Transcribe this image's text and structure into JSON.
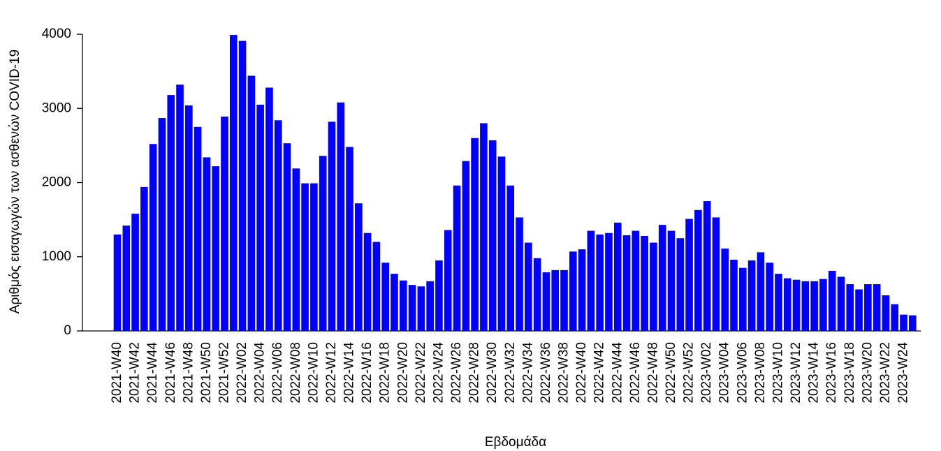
{
  "chart_data": {
    "type": "bar",
    "x_label": "Εβδομάδα",
    "y_label": "Αριθμός εισαγωγών των ασθενών COVID-19",
    "categories": [
      "2021-W40",
      null,
      "2021-W42",
      null,
      "2021-W44",
      null,
      "2021-W46",
      null,
      "2021-W48",
      null,
      "2021-W50",
      null,
      "2021-W52",
      null,
      "2022-W02",
      null,
      "2022-W04",
      null,
      "2022-W06",
      null,
      "2022-W08",
      null,
      "2022-W10",
      null,
      "2022-W12",
      null,
      "2022-W14",
      null,
      "2022-W16",
      null,
      "2022-W18",
      null,
      "2022-W20",
      null,
      "2022-W22",
      null,
      "2022-W24",
      null,
      "2022-W26",
      null,
      "2022-W28",
      null,
      "2022-W30",
      null,
      "2022-W32",
      null,
      "2022-W34",
      null,
      "2022-W36",
      null,
      "2022-W38",
      null,
      "2022-W40",
      null,
      "2022-W42",
      null,
      "2022-W44",
      null,
      "2022-W46",
      null,
      "2022-W48",
      null,
      "2022-W50",
      null,
      "2022-W52",
      null,
      "2023-W02",
      null,
      "2023-W04",
      null,
      "2023-W06",
      null,
      "2023-W08",
      null,
      "2023-W10",
      null,
      "2023-W12",
      null,
      "2023-W14",
      null,
      "2023-W16",
      null,
      "2023-W18",
      null,
      "2023-W20",
      null,
      "2023-W22",
      null,
      "2023-W24",
      null
    ],
    "values": [
      1300,
      1420,
      1580,
      1940,
      2520,
      2870,
      3180,
      3320,
      3040,
      2750,
      2340,
      2220,
      2890,
      3990,
      3910,
      3440,
      3050,
      3280,
      2840,
      2530,
      2190,
      1990,
      1990,
      2360,
      2820,
      3080,
      2480,
      1720,
      1320,
      1200,
      920,
      770,
      680,
      620,
      600,
      670,
      950,
      1360,
      1960,
      2290,
      2600,
      2800,
      2570,
      2350,
      1960,
      1530,
      1190,
      980,
      790,
      820,
      820,
      1070,
      1100,
      1350,
      1300,
      1320,
      1460,
      1290,
      1350,
      1280,
      1190,
      1430,
      1350,
      1250,
      1510,
      1630,
      1750,
      1530,
      1110,
      960,
      850,
      950,
      1060,
      920,
      770,
      710,
      690,
      670,
      670,
      700,
      810,
      730,
      630,
      560,
      630,
      630,
      480,
      360,
      220,
      210
    ],
    "color": "#0000ff",
    "ylim": [
      0,
      4000
    ],
    "yticks": [
      0,
      1000,
      2000,
      3000,
      4000
    ],
    "grid": false
  }
}
